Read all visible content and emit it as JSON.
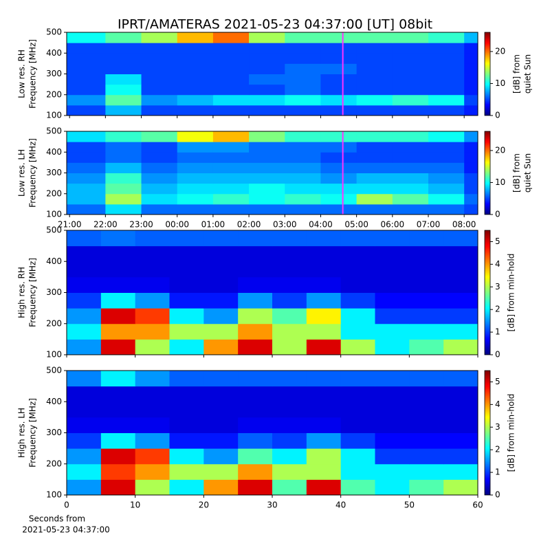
{
  "title": "IPRT/AMATERAS 2021-05-23 04:37:00 [UT]   08bit",
  "chart_data": [
    {
      "type": "heatmap",
      "colormap": "jet",
      "y_label": [
        "Low res. RH",
        "Frequency [MHz]"
      ],
      "colorbar_label": [
        "[dB] from",
        "quiet Sun"
      ],
      "xlim": [
        -0.08,
        11.38
      ],
      "xticks": [
        {
          "value": 0,
          "label": "21:00"
        },
        {
          "value": 1,
          "label": "22:00"
        },
        {
          "value": 2,
          "label": "23:00"
        },
        {
          "value": 3,
          "label": "00:00"
        },
        {
          "value": 4,
          "label": "01:00"
        },
        {
          "value": 5,
          "label": "02:00"
        },
        {
          "value": 6,
          "label": "03:00"
        },
        {
          "value": 7,
          "label": "04:00"
        },
        {
          "value": 8,
          "label": "05:00"
        },
        {
          "value": 9,
          "label": "06:00"
        },
        {
          "value": 10,
          "label": "07:00"
        },
        {
          "value": 11,
          "label": "08:00"
        }
      ],
      "show_xticklabels": false,
      "ylim": [
        100,
        500
      ],
      "yticks": [
        100,
        200,
        300,
        400,
        500
      ],
      "clim": [
        0,
        26
      ],
      "cticks": [
        0,
        10,
        20
      ],
      "marker_x": 7.6167,
      "marker_color": "#ff33ff",
      "x_bins": [
        -0.08,
        1,
        2,
        3,
        4,
        5,
        6,
        7,
        8,
        9,
        10,
        11,
        11.38
      ],
      "y_bins": [
        100,
        150,
        200,
        250,
        300,
        350,
        400,
        450,
        500
      ],
      "z": [
        [
          5,
          8,
          5,
          5,
          5,
          5,
          5,
          5,
          5,
          5,
          5,
          4
        ],
        [
          7,
          12,
          7,
          8,
          9,
          9,
          10,
          9,
          10,
          11,
          10,
          5
        ],
        [
          5,
          10,
          5,
          5,
          5,
          5,
          6,
          5,
          5,
          5,
          5,
          4
        ],
        [
          5,
          9,
          5,
          5,
          5,
          6,
          6,
          5,
          5,
          5,
          5,
          4
        ],
        [
          5,
          5,
          5,
          5,
          5,
          5,
          6,
          6,
          5,
          5,
          5,
          4
        ],
        [
          5,
          5,
          5,
          5,
          5,
          5,
          5,
          5,
          5,
          5,
          5,
          4
        ],
        [
          5,
          5,
          5,
          5,
          5,
          5,
          5,
          5,
          5,
          5,
          5,
          4
        ],
        [
          10,
          12,
          14,
          18,
          20,
          14,
          12,
          12,
          12,
          12,
          11,
          8
        ]
      ]
    },
    {
      "type": "heatmap",
      "colormap": "jet",
      "y_label": [
        "Low res. LH",
        "Frequency [MHz]"
      ],
      "colorbar_label": [
        "[dB] from",
        "quiet Sun"
      ],
      "xlim": [
        -0.08,
        11.38
      ],
      "xticks": [
        {
          "value": 0,
          "label": "21:00"
        },
        {
          "value": 1,
          "label": "22:00"
        },
        {
          "value": 2,
          "label": "23:00"
        },
        {
          "value": 3,
          "label": "00:00"
        },
        {
          "value": 4,
          "label": "01:00"
        },
        {
          "value": 5,
          "label": "02:00"
        },
        {
          "value": 6,
          "label": "03:00"
        },
        {
          "value": 7,
          "label": "04:00"
        },
        {
          "value": 8,
          "label": "05:00"
        },
        {
          "value": 9,
          "label": "06:00"
        },
        {
          "value": 10,
          "label": "07:00"
        },
        {
          "value": 11,
          "label": "08:00"
        }
      ],
      "show_xticklabels": true,
      "ylim": [
        100,
        500
      ],
      "yticks": [
        100,
        200,
        300,
        400,
        500
      ],
      "clim": [
        0,
        26
      ],
      "cticks": [
        0,
        10,
        20
      ],
      "marker_x": 7.6167,
      "marker_color": "#ff33ff",
      "x_bins": [
        -0.08,
        1,
        2,
        3,
        4,
        5,
        6,
        7,
        8,
        9,
        10,
        11,
        11.38
      ],
      "y_bins": [
        100,
        150,
        200,
        250,
        300,
        350,
        400,
        450,
        500
      ],
      "z": [
        [
          6,
          9,
          6,
          6,
          6,
          6,
          6,
          6,
          6,
          6,
          6,
          5
        ],
        [
          8,
          14,
          9,
          10,
          11,
          10,
          11,
          10,
          14,
          12,
          10,
          6
        ],
        [
          8,
          12,
          8,
          9,
          9,
          10,
          9,
          9,
          9,
          9,
          8,
          5
        ],
        [
          7,
          11,
          7,
          8,
          8,
          8,
          8,
          7,
          8,
          8,
          7,
          5
        ],
        [
          6,
          8,
          6,
          7,
          7,
          7,
          7,
          6,
          6,
          6,
          6,
          4
        ],
        [
          5,
          6,
          5,
          6,
          6,
          6,
          6,
          5,
          5,
          5,
          5,
          4
        ],
        [
          5,
          6,
          5,
          7,
          7,
          6,
          6,
          6,
          5,
          5,
          5,
          4
        ],
        [
          9,
          11,
          12,
          16,
          18,
          13,
          11,
          11,
          11,
          11,
          10,
          7
        ]
      ]
    },
    {
      "type": "heatmap",
      "colormap": "jet",
      "y_label": [
        "High res. RH",
        "Frequency [MHz]"
      ],
      "colorbar_label": [
        "[dB] from min-hold"
      ],
      "xlim": [
        0,
        60
      ],
      "xticks": [
        0,
        10,
        20,
        30,
        40,
        50,
        60
      ],
      "show_xticklabels": false,
      "ylim": [
        100,
        500
      ],
      "yticks": [
        100,
        200,
        300,
        400,
        500
      ],
      "clim": [
        0,
        5.5
      ],
      "cticks": [
        0,
        1,
        2,
        3,
        4,
        5
      ],
      "x_bins": [
        0,
        5,
        10,
        15,
        20,
        25,
        30,
        35,
        40,
        45,
        50,
        55,
        60
      ],
      "y_bins": [
        100,
        150,
        200,
        250,
        300,
        350,
        400,
        450,
        500
      ],
      "z": [
        [
          1.5,
          5,
          3,
          2,
          4,
          5,
          3,
          5,
          3,
          2,
          2.5,
          3
        ],
        [
          2,
          4,
          4,
          3,
          3,
          4,
          3,
          3,
          2,
          2,
          2,
          2
        ],
        [
          1.5,
          5,
          4.5,
          2,
          1.5,
          3,
          2.5,
          3.5,
          2,
          1,
          1,
          1
        ],
        [
          1,
          2,
          1.5,
          0.8,
          0.8,
          1.5,
          1,
          1.5,
          1,
          0.7,
          0.7,
          0.7
        ],
        [
          0.6,
          0.6,
          0.6,
          0.5,
          0.5,
          0.6,
          0.6,
          0.6,
          0.5,
          0.5,
          0.5,
          0.5
        ],
        [
          0.5,
          0.5,
          0.5,
          0.5,
          0.5,
          0.5,
          0.5,
          0.5,
          0.5,
          0.5,
          0.5,
          0.5
        ],
        [
          0.5,
          0.5,
          0.5,
          0.5,
          0.5,
          0.5,
          0.5,
          0.5,
          0.5,
          0.5,
          0.5,
          0.5
        ],
        [
          1.2,
          1.3,
          1.2,
          1.2,
          1.2,
          1.2,
          1.2,
          1.2,
          1.2,
          1.2,
          1.2,
          1.2
        ]
      ]
    },
    {
      "type": "heatmap",
      "colormap": "jet",
      "y_label": [
        "High res. LH",
        "Frequency [MHz]"
      ],
      "colorbar_label": [
        "[dB] from min-hold"
      ],
      "x_label": [
        "Seconds from",
        "2021-05-23 04:37:00"
      ],
      "xlim": [
        0,
        60
      ],
      "xticks": [
        0,
        10,
        20,
        30,
        40,
        50,
        60
      ],
      "show_xticklabels": true,
      "ylim": [
        100,
        500
      ],
      "yticks": [
        100,
        200,
        300,
        400,
        500
      ],
      "clim": [
        0,
        5.5
      ],
      "cticks": [
        0,
        1,
        2,
        3,
        4,
        5
      ],
      "x_bins": [
        0,
        5,
        10,
        15,
        20,
        25,
        30,
        35,
        40,
        45,
        50,
        55,
        60
      ],
      "y_bins": [
        100,
        150,
        200,
        250,
        300,
        350,
        400,
        450,
        500
      ],
      "z": [
        [
          1.5,
          5,
          3,
          2,
          4,
          5,
          2.5,
          5,
          2.5,
          2,
          2.5,
          3
        ],
        [
          2,
          4.5,
          4,
          3,
          3,
          4,
          3,
          3,
          2,
          2,
          2,
          2
        ],
        [
          1.5,
          5,
          4.5,
          2,
          1.5,
          2.5,
          2,
          3,
          2,
          1,
          1,
          1
        ],
        [
          1,
          2,
          1.5,
          0.8,
          0.8,
          1.2,
          1,
          1.5,
          1,
          0.7,
          0.7,
          0.7
        ],
        [
          0.6,
          0.6,
          0.6,
          0.5,
          0.5,
          0.6,
          0.6,
          0.6,
          0.5,
          0.5,
          0.5,
          0.5
        ],
        [
          0.5,
          0.5,
          0.5,
          0.5,
          0.5,
          0.5,
          0.5,
          0.5,
          0.5,
          0.5,
          0.5,
          0.5
        ],
        [
          0.5,
          0.5,
          0.5,
          0.5,
          0.5,
          0.5,
          0.5,
          0.5,
          0.5,
          0.5,
          0.5,
          0.5
        ],
        [
          1.4,
          2,
          1.5,
          1.2,
          1.2,
          1.2,
          1.2,
          1.2,
          1.2,
          1.2,
          1.2,
          1.2
        ]
      ]
    }
  ]
}
